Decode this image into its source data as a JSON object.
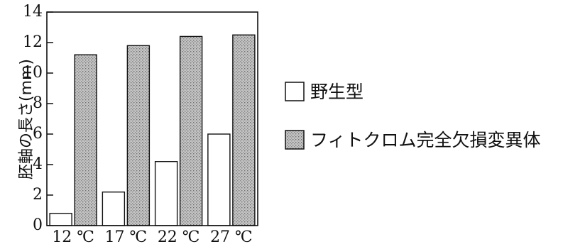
{
  "chart_data": {
    "type": "bar",
    "categories": [
      "12 ℃",
      "17 ℃",
      "22 ℃",
      "27 ℃"
    ],
    "series": [
      {
        "name": "野生型",
        "values": [
          0.8,
          2.2,
          4.2,
          6.0
        ],
        "fill": "#ffffff"
      },
      {
        "name": "フィトクロム完全欠損変異体",
        "values": [
          11.2,
          11.8,
          12.4,
          12.5
        ],
        "fill": "#b8b8b8"
      }
    ],
    "title": "",
    "xlabel": "",
    "ylabel": "胚軸の長さ(mm)",
    "ylim": [
      0,
      14
    ],
    "yticks": [
      "0",
      "2",
      "4",
      "6",
      "8",
      "10",
      "12",
      "14"
    ],
    "grid": false,
    "legend_position": "right"
  }
}
